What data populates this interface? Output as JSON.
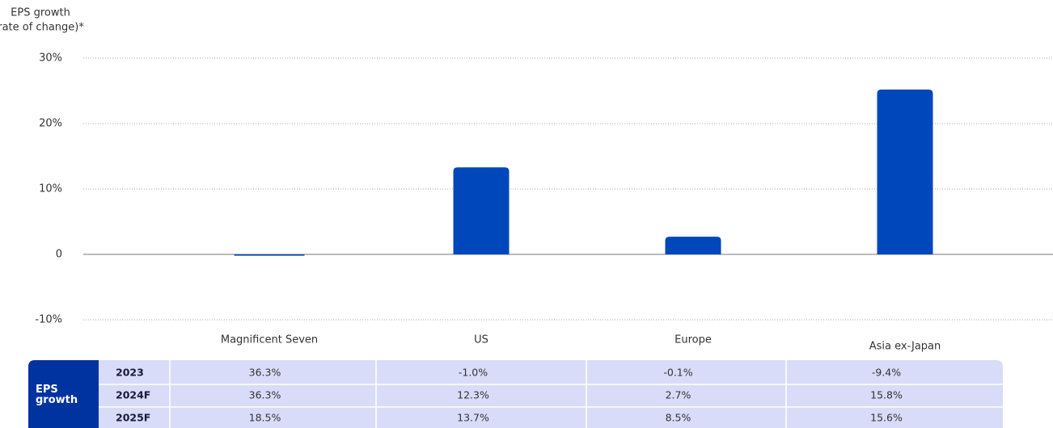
{
  "chart_data": {
    "type": "bar",
    "ylabel": [
      "EPS growth",
      "(rate of change)*"
    ],
    "categories": [
      "Magnificent Seven",
      "US",
      "Europe",
      "Asia ex-Japan"
    ],
    "values": [
      -0.2,
      13.3,
      2.7,
      25.2
    ],
    "color": "#0047bb",
    "ylim": [
      -10,
      30
    ],
    "yticks": [
      {
        "value": -10,
        "label": "-10%"
      },
      0,
      {
        "value": 10,
        "label": "10%"
      },
      {
        "value": 20,
        "label": "20%"
      },
      {
        "value": 30,
        "label": "30%"
      }
    ],
    "grid": true
  },
  "table": {
    "header": "EPS growth",
    "rows": [
      {
        "label": "2023",
        "cells": [
          "36.3%",
          "-1.0%",
          "-0.1%",
          "-9.4%"
        ]
      },
      {
        "label": "2024F",
        "cells": [
          "36.3%",
          "12.3%",
          "2.7%",
          "15.8%"
        ]
      },
      {
        "label": "2025F",
        "cells": [
          "18.5%",
          "13.7%",
          "8.5%",
          "15.6%"
        ]
      }
    ]
  }
}
